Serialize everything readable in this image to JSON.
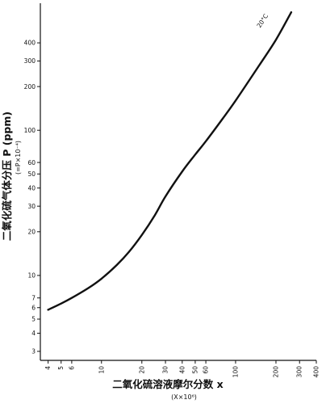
{
  "chart_data": {
    "type": "line",
    "title": "",
    "xlabel": "二氧化硫溶液摩尔分数 x",
    "xlabel_sub": "(X×10⁶)",
    "ylabel": "二氧化硫气体分压 P (ppm)",
    "ylabel_sub": "(=P×10⁻⁴)",
    "x_scale": "log",
    "y_scale": "log",
    "xlim": [
      3.5,
      400
    ],
    "ylim": [
      2.6,
      750
    ],
    "x_ticks": [
      4,
      5,
      6,
      10,
      20,
      30,
      40,
      50,
      60,
      100,
      200,
      300,
      400
    ],
    "x_tick_labels": [
      "4",
      "5",
      "6",
      "10",
      "20",
      "30",
      "40",
      "50",
      "60",
      "100",
      "200",
      "300",
      "400"
    ],
    "y_ticks": [
      3,
      4,
      5,
      6,
      7,
      10,
      20,
      30,
      40,
      50,
      60,
      100,
      200,
      300,
      400
    ],
    "y_tick_labels": [
      "3",
      "4",
      "5",
      "6",
      "7",
      "10",
      "20",
      "30",
      "40",
      "50",
      "60",
      "100",
      "200",
      "300",
      "400"
    ],
    "grid": false,
    "series": [
      {
        "name": "20°C",
        "x": [
          4.0,
          5.0,
          6.0,
          8.0,
          10.0,
          13.0,
          16.0,
          20.0,
          25.0,
          30.0,
          40.0,
          50.0,
          60.0,
          80.0,
          100.0,
          150.0,
          200.0,
          260.0
        ],
        "y": [
          5.8,
          6.4,
          7.0,
          8.2,
          9.5,
          11.8,
          14.5,
          19.0,
          26.0,
          35.0,
          52.0,
          68.0,
          84.0,
          120.0,
          160.0,
          280.0,
          420.0,
          650.0
        ]
      }
    ]
  }
}
